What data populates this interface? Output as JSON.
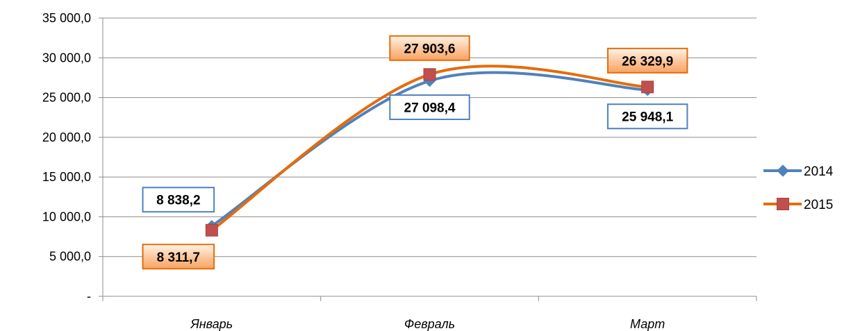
{
  "chart_data": {
    "type": "line",
    "smooth": true,
    "categories": [
      "Январь",
      "Февраль",
      "Март"
    ],
    "series": [
      {
        "name": "2014",
        "values": [
          8838.2,
          27098.4,
          25948.1
        ],
        "labels": [
          "8 838,2",
          "27 098,4",
          "25 948,1"
        ],
        "color": "#4F81BD",
        "marker": "diamond",
        "label_style": "outlined"
      },
      {
        "name": "2015",
        "values": [
          8311.7,
          27903.6,
          26329.9
        ],
        "labels": [
          "8 311,7",
          "27 903,6",
          "26 329,9"
        ],
        "color": "#E46C0A",
        "marker_color": "#C0504D",
        "marker": "square",
        "label_style": "orange-gradient"
      }
    ],
    "y_ticks": [
      {
        "value": 0,
        "label": "-"
      },
      {
        "value": 5000,
        "label": "5 000,0"
      },
      {
        "value": 10000,
        "label": "10 000,0"
      },
      {
        "value": 15000,
        "label": "15 000,0"
      },
      {
        "value": 20000,
        "label": "20 000,0"
      },
      {
        "value": 25000,
        "label": "25 000,0"
      },
      {
        "value": 30000,
        "label": "30 000,0"
      },
      {
        "value": 35000,
        "label": "35 000,0"
      }
    ],
    "ylim": [
      0,
      35000
    ],
    "grid": true,
    "legend_position": "right"
  }
}
